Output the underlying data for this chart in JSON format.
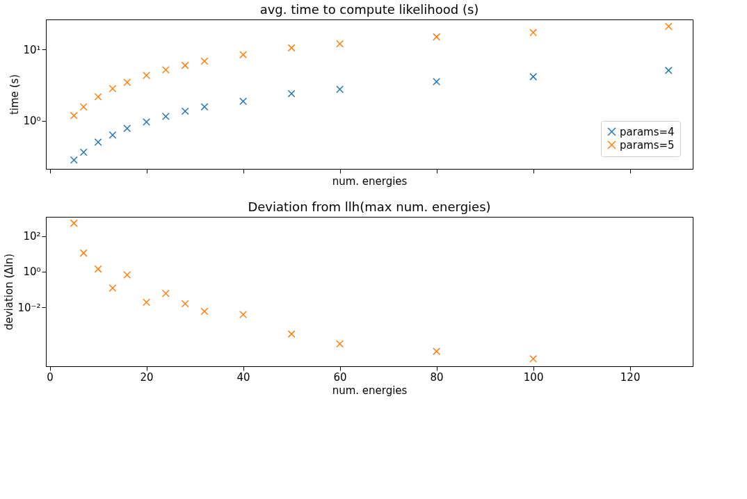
{
  "chart_data": [
    {
      "type": "scatter",
      "title": "avg. time to compute likelihood (s)",
      "xlabel": "num. energies",
      "ylabel": "time (s)",
      "log": "y",
      "grid": false,
      "legend": "bottom right",
      "marker": "cross",
      "tick_labels": "y",
      "xlim": [
        -0.8,
        133
      ],
      "xticks": [
        {
          "value": 0,
          "label": null
        },
        {
          "value": 20,
          "label": null
        },
        {
          "value": 40,
          "label": null
        },
        {
          "value": 60,
          "label": null
        },
        {
          "value": 80,
          "label": null
        },
        {
          "value": 100,
          "label": null
        },
        {
          "value": 120,
          "label": null
        }
      ],
      "ylim": [
        0.21,
        26.6
      ],
      "yticks": [
        {
          "value": 1,
          "label": "10⁰"
        },
        {
          "value": 10,
          "label": "10¹"
        }
      ],
      "x": [
        5,
        7,
        10,
        13,
        16,
        20,
        24,
        28,
        32,
        40,
        50,
        60,
        80,
        100,
        128
      ],
      "series": [
        {
          "name": "params=4",
          "color": "#1f77b4",
          "values": [
            0.28,
            0.36,
            0.5,
            0.63,
            0.78,
            0.96,
            1.15,
            1.36,
            1.57,
            1.88,
            2.4,
            2.77,
            3.54,
            4.16,
            5.1
          ]
        },
        {
          "name": "params=5",
          "color": "#ff7f0e",
          "values": [
            1.18,
            1.57,
            2.17,
            2.83,
            3.46,
            4.34,
            5.2,
            6.0,
            6.9,
            8.5,
            10.6,
            12.1,
            15.1,
            17.4,
            21.2
          ]
        }
      ]
    },
    {
      "type": "scatter",
      "title": "Deviation from llh(max num. energies)",
      "xlabel": "num. energies",
      "ylabel": "deviation (Δln)",
      "log": "y",
      "grid": false,
      "legend": false,
      "marker": "cross",
      "xlim": [
        -0.8,
        133
      ],
      "xticks": [
        0,
        20,
        40,
        60,
        80,
        100,
        120
      ],
      "ylim": [
        5e-06,
        1180
      ],
      "yticks": [
        {
          "value": 100,
          "label": "10²"
        },
        {
          "value": 1,
          "label": "10⁰"
        },
        {
          "value": 0.01,
          "label": "10⁻²"
        }
      ],
      "x": [
        5,
        7,
        10,
        13,
        16,
        20,
        24,
        28,
        32,
        40,
        50,
        60,
        80,
        100
      ],
      "series": [
        {
          "color": "#ff7f0e",
          "values": [
            520,
            11,
            1.4,
            0.12,
            0.66,
            0.019,
            0.06,
            0.016,
            0.006,
            0.004,
            0.00032,
            9e-05,
            3.4e-05,
            1.3e-05
          ]
        }
      ]
    }
  ]
}
